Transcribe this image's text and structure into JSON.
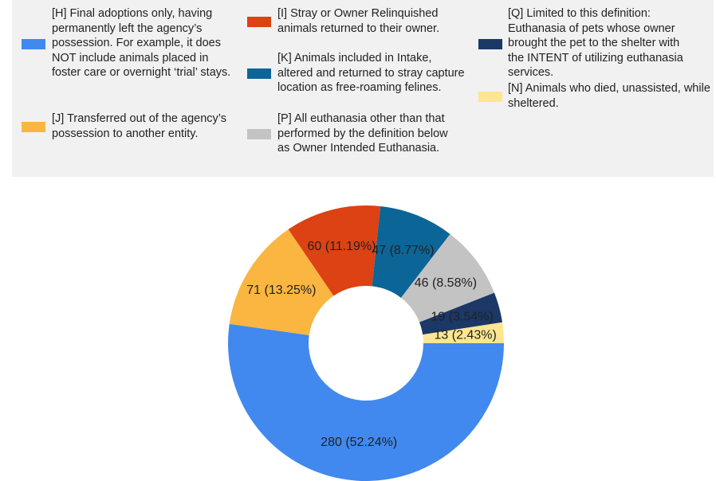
{
  "chart_data": {
    "type": "pie",
    "categories": [
      "[H] Final adoptions only, having permanently left the agency’s possession. For example, it does NOT include animals placed in foster care or overnight ‘trial’ stays.",
      "[J] Transferred out of the agency’s possession to another entity.",
      "[I] Stray or Owner Relinquished animals returned to their owner.",
      "[K] Animals included in Intake, altered and returned to stray capture location as free-roaming felines.",
      "[P] All euthanasia other than that performed by the definition below as Owner Intended Euthanasia.",
      "[Q] Limited to this definition: Euthanasia of pets whose owner brought the pet to the shelter with the INTENT of utilizing euthanasia services.",
      "[N] Animals who died, unassisted, while sheltered."
    ],
    "values": [
      280,
      71,
      60,
      47,
      46,
      19,
      13
    ],
    "value_labels": [
      "280 (52.24%)",
      "71 (13.25%)",
      "60 (11.19%)",
      "47 (8.77%)",
      "46 (8.58%)",
      "19 (3.54%)",
      "13 (2.43%)"
    ],
    "colors": [
      "#4189ee",
      "#fbb541",
      "#dc4213",
      "#0c6597",
      "#c3c3c3",
      "#1b3866",
      "#fde68f"
    ]
  }
}
